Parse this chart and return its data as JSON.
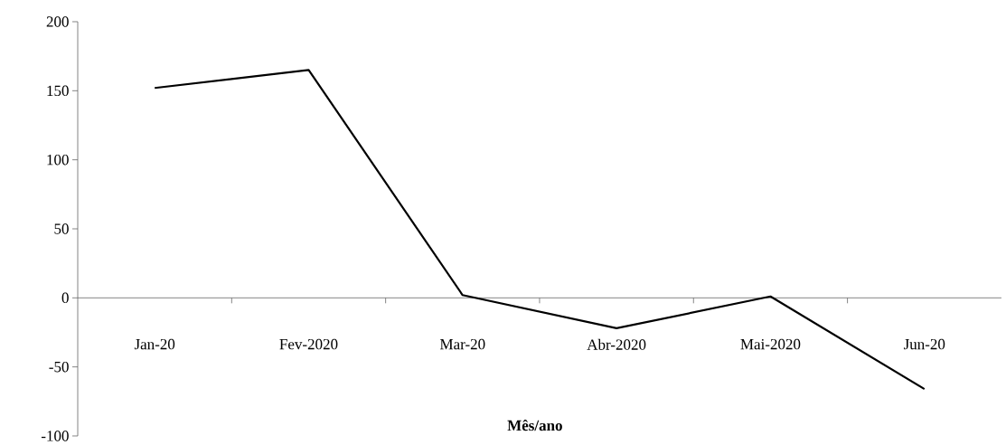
{
  "chart_data": {
    "type": "line",
    "xlabel": "**Mês/ano**",
    "categories": [
      "Jan-20",
      "Fev-2020",
      "Mar-20",
      "Abr-2020",
      "Mai-2020",
      "Jun-20"
    ],
    "values": [
      152,
      165,
      2,
      -22,
      1,
      -66
    ],
    "color": "#000000",
    "ylim": [
      -100,
      200
    ],
    "yticks": [
      -100,
      -50,
      0,
      50,
      100,
      150,
      200
    ]
  }
}
